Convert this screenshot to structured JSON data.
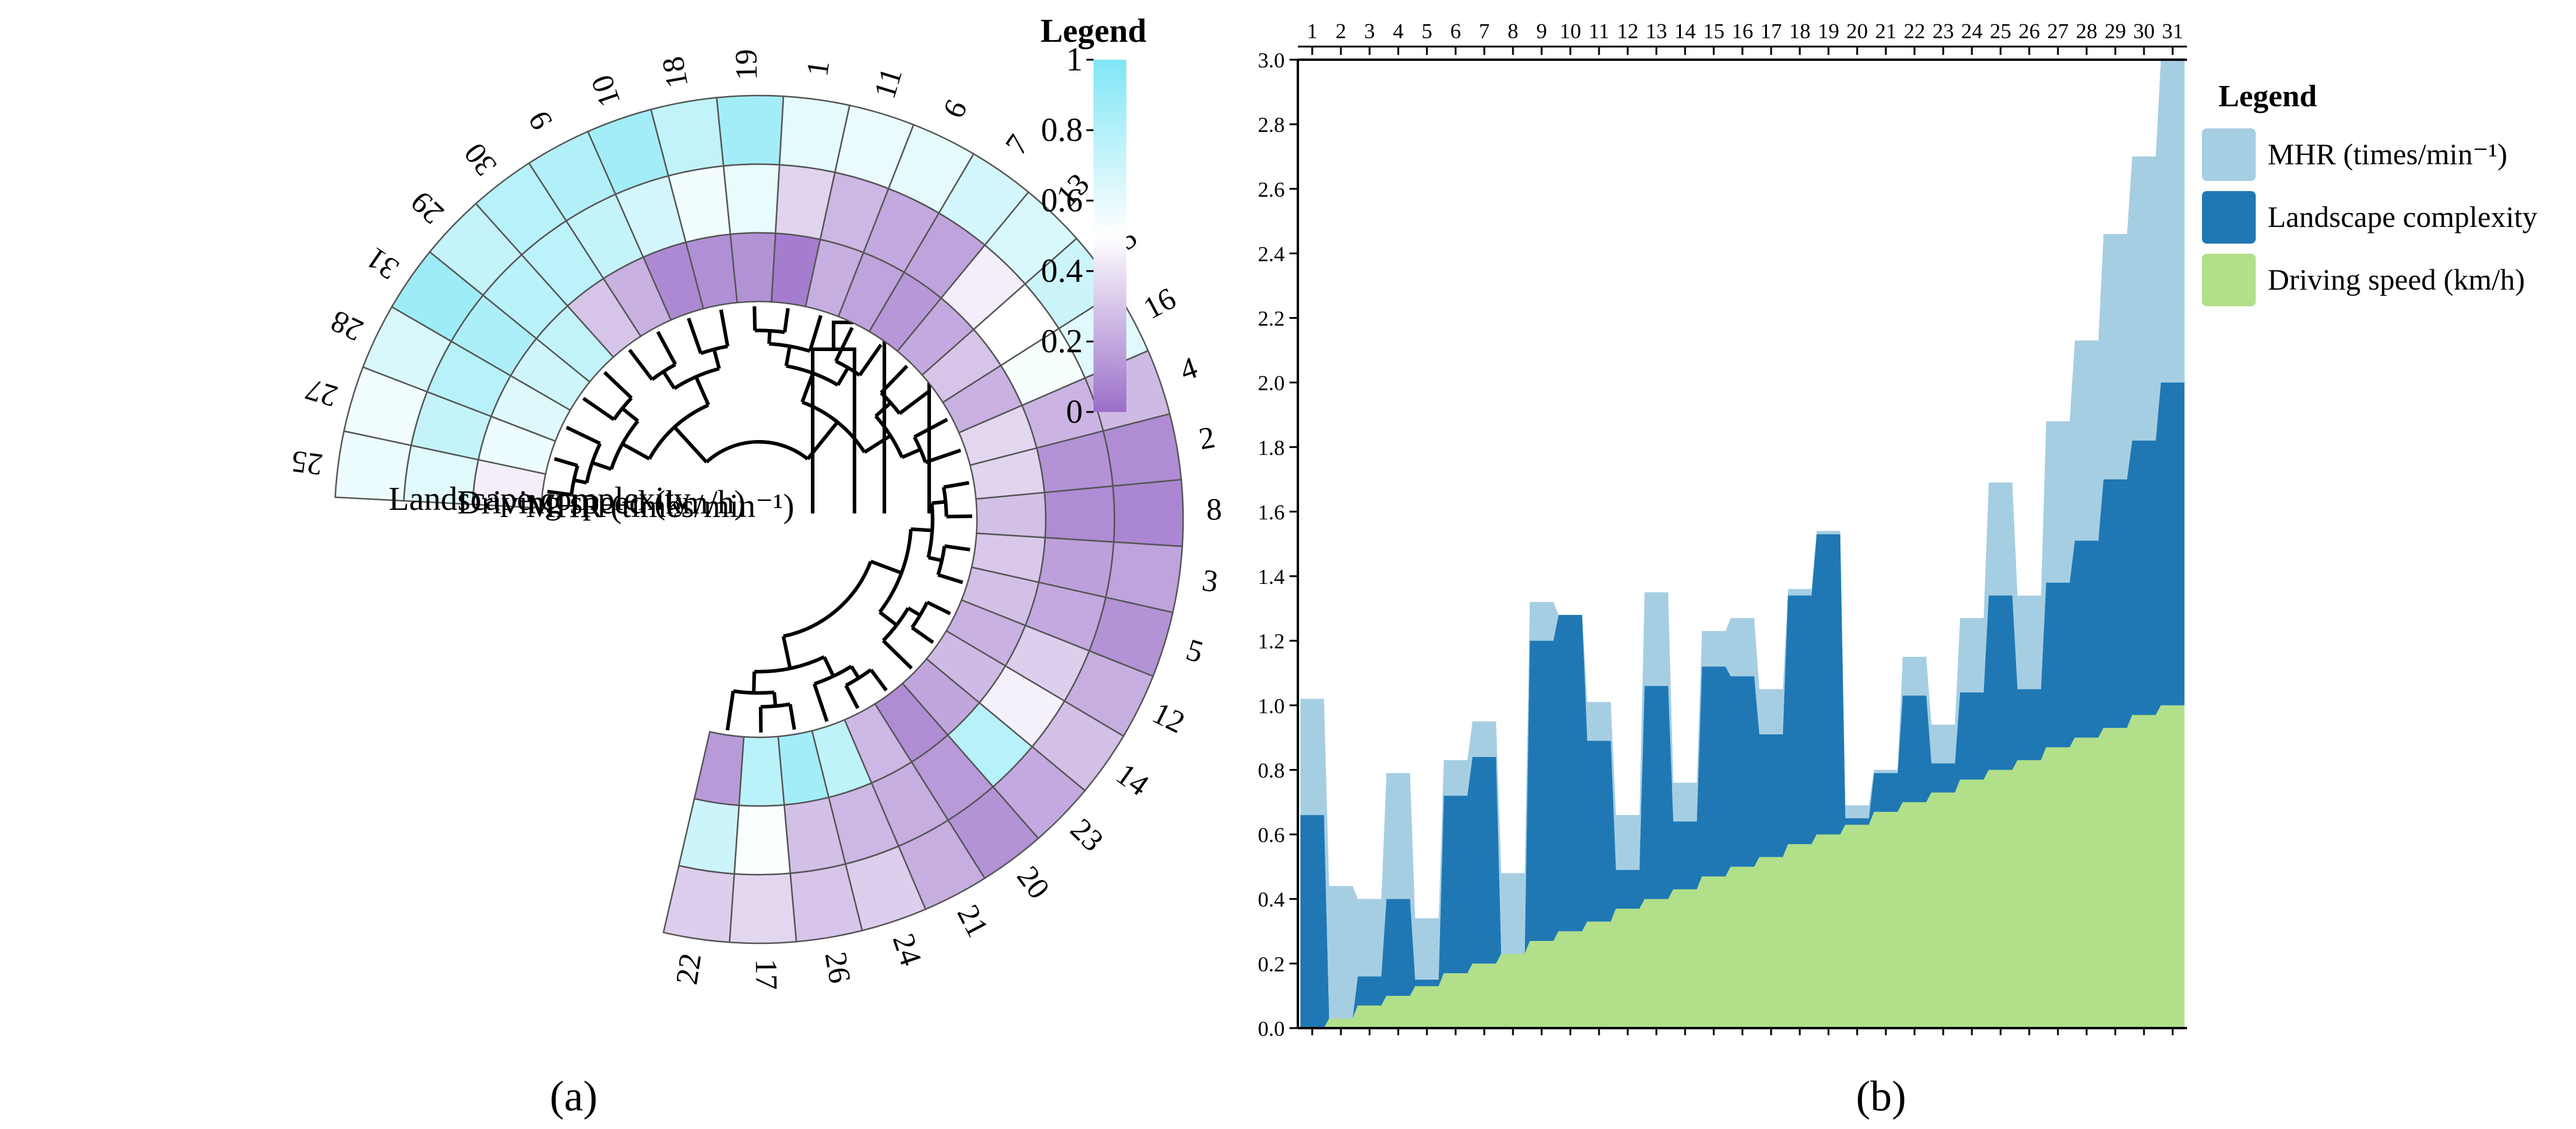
{
  "colors": {
    "cmap_low": "#9b6fc9",
    "cmap_mid": "#ffffff",
    "cmap_high": "#7fe6f5",
    "mhr": "#a6cee3",
    "landscape": "#1f78b4",
    "speed": "#b2df8a"
  },
  "chart_data": [
    {
      "type": "heatmap",
      "variant": "circular-clustered-heatmap",
      "panel_label": "(a)",
      "rows": [
        "Landscape complexity",
        "Driving speed (km/h)",
        "MHR (times/min⁻¹)"
      ],
      "legend": {
        "title": "Legend",
        "ticks": [
          "0",
          "0.2",
          "0.4",
          "0.6",
          "0.8",
          "1"
        ],
        "range": [
          0,
          1
        ]
      },
      "order": [
        "25",
        "27",
        "28",
        "31",
        "29",
        "30",
        "9",
        "10",
        "18",
        "19",
        "1",
        "11",
        "6",
        "7",
        "13",
        "15",
        "16",
        "4",
        "2",
        "8",
        "3",
        "5",
        "12",
        "14",
        "23",
        "20",
        "21",
        "24",
        "26",
        "17",
        "22"
      ],
      "cells": [
        [
          0.57,
          0.62,
          0.44
        ],
        [
          0.56,
          0.73,
          0.57
        ],
        [
          0.65,
          0.78,
          0.63
        ],
        [
          0.88,
          0.82,
          0.69
        ],
        [
          0.73,
          0.77,
          0.74
        ],
        [
          0.78,
          0.76,
          0.3
        ],
        [
          0.8,
          0.73,
          0.23
        ],
        [
          0.86,
          0.67,
          0.09
        ],
        [
          0.74,
          0.55,
          0.11
        ],
        [
          0.86,
          0.59,
          0.12
        ],
        [
          0.6,
          0.35,
          0.05
        ],
        [
          0.58,
          0.25,
          0.22
        ],
        [
          0.6,
          0.2,
          0.18
        ],
        [
          0.67,
          0.18,
          0.14
        ],
        [
          0.65,
          0.44,
          0.2
        ],
        [
          0.7,
          0.5,
          0.3
        ],
        [
          0.62,
          0.53,
          0.23
        ],
        [
          0.26,
          0.24,
          0.36
        ],
        [
          0.1,
          0.12,
          0.35
        ],
        [
          0.08,
          0.1,
          0.28
        ],
        [
          0.18,
          0.17,
          0.31
        ],
        [
          0.12,
          0.2,
          0.28
        ],
        [
          0.22,
          0.33,
          0.23
        ],
        [
          0.28,
          0.45,
          0.26
        ],
        [
          0.2,
          0.78,
          0.19
        ],
        [
          0.12,
          0.15,
          0.1
        ],
        [
          0.22,
          0.22,
          0.25
        ],
        [
          0.33,
          0.25,
          0.75
        ],
        [
          0.3,
          0.28,
          0.86
        ],
        [
          0.36,
          0.52,
          0.77
        ],
        [
          0.33,
          0.7,
          0.15
        ]
      ]
    },
    {
      "type": "area",
      "variant": "stacked-step-area",
      "panel_label": "(b)",
      "legend": {
        "title": "Legend"
      },
      "x": [
        "1",
        "2",
        "3",
        "4",
        "5",
        "6",
        "7",
        "8",
        "9",
        "10",
        "11",
        "12",
        "13",
        "14",
        "15",
        "16",
        "17",
        "18",
        "19",
        "20",
        "21",
        "22",
        "23",
        "24",
        "25",
        "26",
        "27",
        "28",
        "29",
        "30",
        "31"
      ],
      "ylim": [
        0,
        3.0
      ],
      "yticks": [
        "0.0",
        "0.2",
        "0.4",
        "0.6",
        "0.8",
        "1.0",
        "1.2",
        "1.4",
        "1.6",
        "1.8",
        "2.0",
        "2.2",
        "2.4",
        "2.6",
        "2.8",
        "3.0"
      ],
      "series": [
        {
          "name": "Driving speed (km/h)",
          "values": [
            0.0,
            0.03,
            0.07,
            0.1,
            0.13,
            0.17,
            0.2,
            0.23,
            0.27,
            0.3,
            0.33,
            0.37,
            0.4,
            0.43,
            0.47,
            0.5,
            0.53,
            0.57,
            0.6,
            0.63,
            0.67,
            0.7,
            0.73,
            0.77,
            0.8,
            0.83,
            0.87,
            0.9,
            0.93,
            0.97,
            1.0
          ]
        },
        {
          "name": "Landscape complexity",
          "values": [
            0.66,
            0.0,
            0.09,
            0.3,
            0.02,
            0.55,
            0.64,
            0.0,
            0.93,
            0.98,
            0.56,
            0.12,
            0.66,
            0.21,
            0.65,
            0.59,
            0.38,
            0.77,
            0.93,
            0.02,
            0.12,
            0.33,
            0.09,
            0.27,
            0.54,
            0.22,
            0.51,
            0.61,
            0.77,
            0.85,
            1.0
          ]
        },
        {
          "name": "MHR (times/min⁻¹)",
          "values": [
            0.36,
            0.41,
            0.24,
            0.39,
            0.19,
            0.11,
            0.11,
            0.25,
            0.12,
            0.0,
            0.12,
            0.17,
            0.29,
            0.12,
            0.11,
            0.18,
            0.14,
            0.02,
            0.01,
            0.04,
            0.01,
            0.12,
            0.12,
            0.23,
            0.35,
            0.29,
            0.5,
            0.62,
            0.76,
            0.88,
            1.0
          ]
        }
      ]
    }
  ]
}
